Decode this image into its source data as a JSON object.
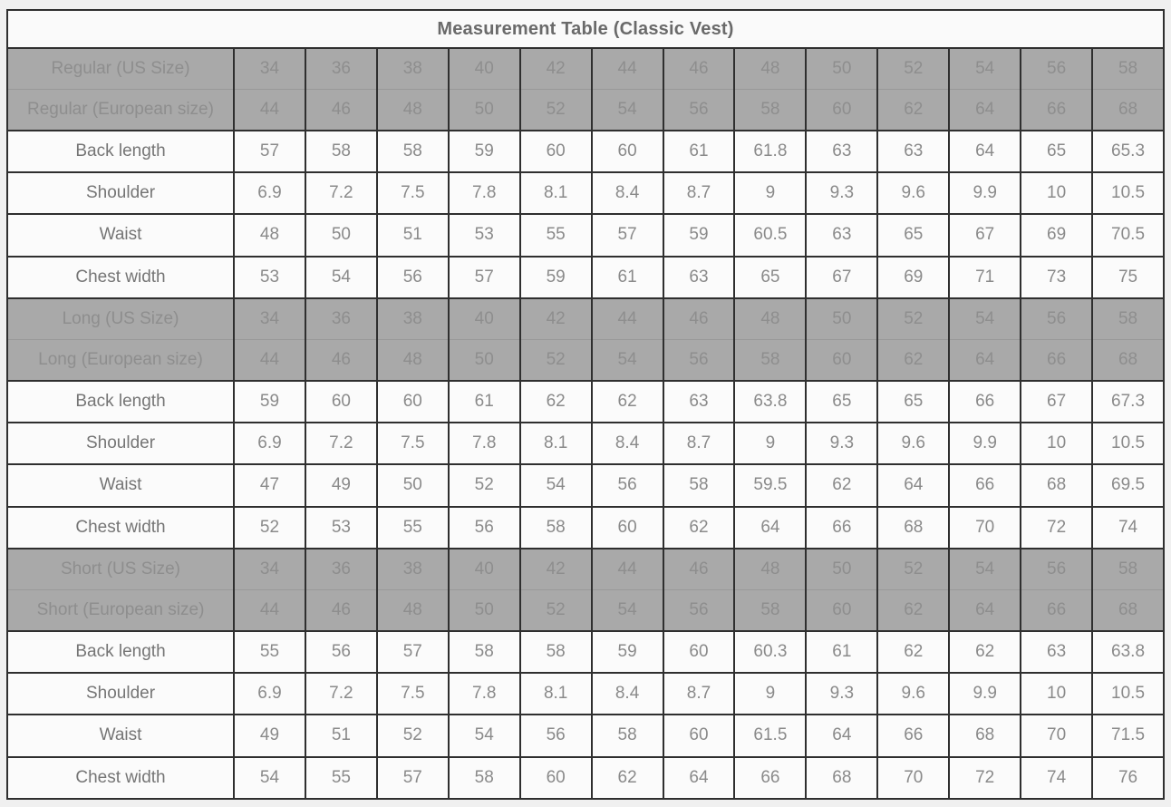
{
  "page_title": "Measurement Table (Classic Vest)",
  "colors": {
    "page_background": "#f0f0f0",
    "title_background": "#fafafa",
    "title_text": "#6a6a6a",
    "size_row_background": "#a9a9a9",
    "size_row_text": "#8e8e8e",
    "data_row_background": "#fbfbfb",
    "data_row_text": "#8a8a8a",
    "row_label_text": "#757575",
    "border": "#2f2f2f"
  },
  "chart_data": {
    "type": "table",
    "title": "Measurement Table (Classic Vest)",
    "columns_per_row": 13,
    "sections": [
      {
        "name": "Regular",
        "size_rows": [
          {
            "label": "Regular (US Size)",
            "values": [
              "34",
              "36",
              "38",
              "40",
              "42",
              "44",
              "46",
              "48",
              "50",
              "52",
              "54",
              "56",
              "58"
            ]
          },
          {
            "label": "Regular (European size)",
            "values": [
              "44",
              "46",
              "48",
              "50",
              "52",
              "54",
              "56",
              "58",
              "60",
              "62",
              "64",
              "66",
              "68"
            ]
          }
        ],
        "measure_rows": [
          {
            "label": "Back length",
            "values": [
              "57",
              "58",
              "58",
              "59",
              "60",
              "60",
              "61",
              "61.8",
              "63",
              "63",
              "64",
              "65",
              "65.3"
            ]
          },
          {
            "label": "Shoulder",
            "values": [
              "6.9",
              "7.2",
              "7.5",
              "7.8",
              "8.1",
              "8.4",
              "8.7",
              "9",
              "9.3",
              "9.6",
              "9.9",
              "10",
              "10.5"
            ]
          },
          {
            "label": "Waist",
            "values": [
              "48",
              "50",
              "51",
              "53",
              "55",
              "57",
              "59",
              "60.5",
              "63",
              "65",
              "67",
              "69",
              "70.5"
            ]
          },
          {
            "label": "Chest width",
            "values": [
              "53",
              "54",
              "56",
              "57",
              "59",
              "61",
              "63",
              "65",
              "67",
              "69",
              "71",
              "73",
              "75"
            ]
          }
        ]
      },
      {
        "name": "Long",
        "size_rows": [
          {
            "label": "Long (US Size)",
            "values": [
              "34",
              "36",
              "38",
              "40",
              "42",
              "44",
              "46",
              "48",
              "50",
              "52",
              "54",
              "56",
              "58"
            ]
          },
          {
            "label": "Long (European size)",
            "values": [
              "44",
              "46",
              "48",
              "50",
              "52",
              "54",
              "56",
              "58",
              "60",
              "62",
              "64",
              "66",
              "68"
            ]
          }
        ],
        "measure_rows": [
          {
            "label": "Back length",
            "values": [
              "59",
              "60",
              "60",
              "61",
              "62",
              "62",
              "63",
              "63.8",
              "65",
              "65",
              "66",
              "67",
              "67.3"
            ]
          },
          {
            "label": "Shoulder",
            "values": [
              "6.9",
              "7.2",
              "7.5",
              "7.8",
              "8.1",
              "8.4",
              "8.7",
              "9",
              "9.3",
              "9.6",
              "9.9",
              "10",
              "10.5"
            ]
          },
          {
            "label": "Waist",
            "values": [
              "47",
              "49",
              "50",
              "52",
              "54",
              "56",
              "58",
              "59.5",
              "62",
              "64",
              "66",
              "68",
              "69.5"
            ]
          },
          {
            "label": "Chest width",
            "values": [
              "52",
              "53",
              "55",
              "56",
              "58",
              "60",
              "62",
              "64",
              "66",
              "68",
              "70",
              "72",
              "74"
            ]
          }
        ]
      },
      {
        "name": "Short",
        "size_rows": [
          {
            "label": "Short (US Size)",
            "values": [
              "34",
              "36",
              "38",
              "40",
              "42",
              "44",
              "46",
              "48",
              "50",
              "52",
              "54",
              "56",
              "58"
            ]
          },
          {
            "label": "Short (European size)",
            "values": [
              "44",
              "46",
              "48",
              "50",
              "52",
              "54",
              "56",
              "58",
              "60",
              "62",
              "64",
              "66",
              "68"
            ]
          }
        ],
        "measure_rows": [
          {
            "label": "Back length",
            "values": [
              "55",
              "56",
              "57",
              "58",
              "58",
              "59",
              "60",
              "60.3",
              "61",
              "62",
              "62",
              "63",
              "63.8"
            ]
          },
          {
            "label": "Shoulder",
            "values": [
              "6.9",
              "7.2",
              "7.5",
              "7.8",
              "8.1",
              "8.4",
              "8.7",
              "9",
              "9.3",
              "9.6",
              "9.9",
              "10",
              "10.5"
            ]
          },
          {
            "label": "Waist",
            "values": [
              "49",
              "51",
              "52",
              "54",
              "56",
              "58",
              "60",
              "61.5",
              "64",
              "66",
              "68",
              "70",
              "71.5"
            ]
          },
          {
            "label": "Chest width",
            "values": [
              "54",
              "55",
              "57",
              "58",
              "60",
              "62",
              "64",
              "66",
              "68",
              "70",
              "72",
              "74",
              "76"
            ]
          }
        ]
      }
    ]
  }
}
